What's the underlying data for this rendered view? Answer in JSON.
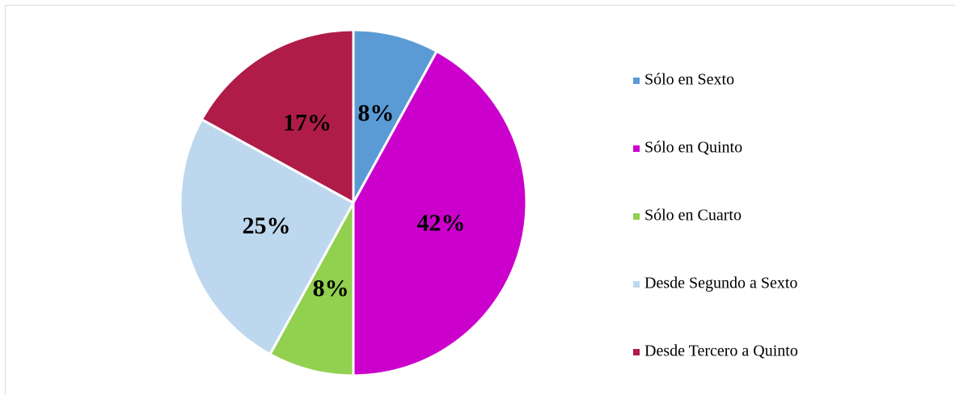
{
  "chart_data": {
    "type": "pie",
    "categories": [
      "Sólo en Sexto",
      "Sólo en Quinto",
      "Sólo en Cuarto",
      "Desde Segundo a Sexto",
      "Desde Tercero a Quinto"
    ],
    "values": [
      8,
      42,
      8,
      25,
      17
    ],
    "value_labels": [
      "8%",
      "42%",
      "8%",
      "25%",
      "17%"
    ],
    "colors": [
      "#5b9bd5",
      "#cc00cc",
      "#92d050",
      "#bdd7ee",
      "#b01c48"
    ],
    "legend": "right"
  }
}
